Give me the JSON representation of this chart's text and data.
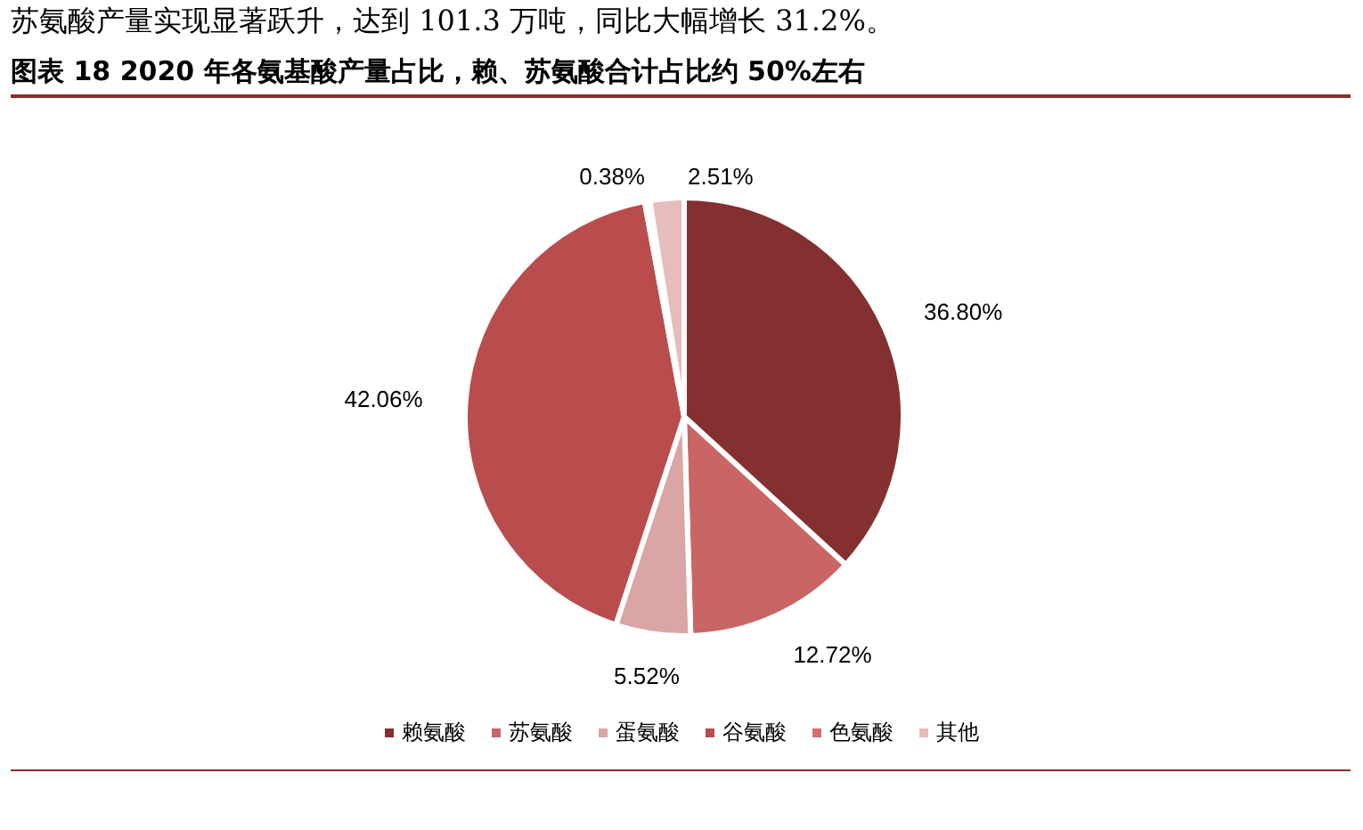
{
  "chart_data": {
    "type": "pie",
    "title": "图表 18  2020 年各氨基酸产量占比，赖、苏氨酸合计占比约 50%左右",
    "annotations": [
      "苏氨酸产量实现显著跃升，达到 101.3 万吨，同比大幅增长 31.2%。"
    ],
    "categories": [
      "赖氨酸",
      "苏氨酸",
      "蛋氨酸",
      "谷氨酸",
      "色氨酸",
      "其他"
    ],
    "values": [
      36.8,
      12.72,
      5.52,
      42.06,
      0.38,
      2.51
    ],
    "colors": [
      "#843030",
      "#c96565",
      "#d9a5a5",
      "#b94d4d",
      "#d46e6e",
      "#e6bcbc"
    ],
    "value_labels": [
      "36.80%",
      "12.72%",
      "5.52%",
      "42.06%",
      "0.38%",
      "2.51%"
    ],
    "legend": "bottom"
  }
}
